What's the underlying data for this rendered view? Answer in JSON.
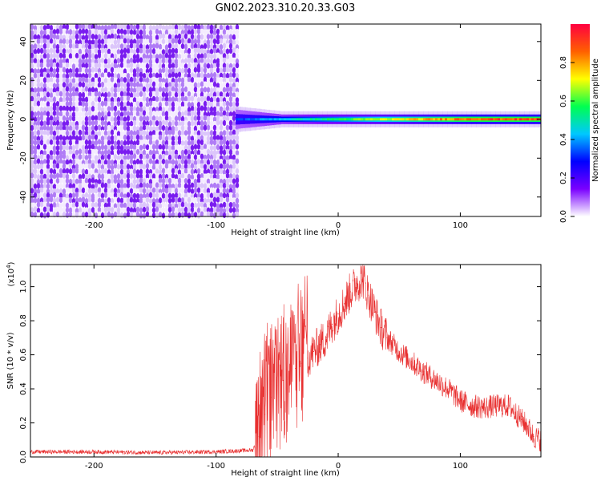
{
  "title": "GN02.2023.310.20.33.G03",
  "colors": {
    "snr_line": "#e83030",
    "signal_purple": "#7a1cf0",
    "background": "#ffffff",
    "axis": "#000000"
  },
  "chart_data": [
    {
      "type": "heatmap",
      "title": "GN02.2023.310.20.33.G03",
      "xlabel": "Height of straight line (km)",
      "ylabel": "Frequency (Hz)",
      "xlim": [
        -252,
        166
      ],
      "ylim": [
        -50,
        49
      ],
      "x_ticks": [
        -200,
        -100,
        0,
        100
      ],
      "y_ticks": [
        -40,
        -20,
        0,
        20,
        40
      ],
      "colorbar": {
        "label": "Normalized spectral amplitude",
        "range": [
          0,
          1
        ],
        "ticks": [
          "0.0",
          "0.2",
          "0.4",
          "0.6",
          "0.8"
        ],
        "colormap": [
          "#ffffff",
          "#7a00ff",
          "#0000ff",
          "#00c8ff",
          "#00ff50",
          "#ffff00",
          "#ff6000",
          "#ff0040"
        ]
      },
      "regions": [
        {
          "description": "noise",
          "x_range": [
            -252,
            -82
          ],
          "y_range": [
            -50,
            49
          ],
          "amplitude": 0.05
        },
        {
          "description": "carrier",
          "x_range": [
            -84,
            166
          ],
          "freq_hz": 0,
          "amplitude_start": 0.35,
          "amplitude_end": 0.95
        }
      ]
    },
    {
      "type": "line",
      "xlabel": "Height of straight line (km)",
      "ylabel": "SNR (10 * v/v)",
      "y_scale_label": "(x10",
      "y_scale_exp": "4",
      "xlim": [
        -252,
        166
      ],
      "ylim": [
        0,
        1.13
      ],
      "x_ticks": [
        -200,
        -100,
        0,
        100
      ],
      "y_ticks": [
        "0.0",
        "0.2",
        "0.4",
        "0.6",
        "0.8",
        "1.0"
      ],
      "series": [
        {
          "x": [
            -252,
            -200,
            -150,
            -100,
            -70,
            -65,
            -60,
            -55,
            -50,
            -45,
            -40,
            -35,
            -30,
            -25,
            -20,
            -15,
            -10,
            -5,
            0,
            5,
            10,
            15,
            20,
            25,
            30,
            35,
            40,
            50,
            60,
            70,
            80,
            90,
            100,
            110,
            120,
            130,
            140,
            150,
            155,
            160,
            166
          ],
          "y": [
            0.03,
            0.03,
            0.025,
            0.03,
            0.04,
            0.12,
            0.25,
            0.35,
            0.42,
            0.45,
            0.5,
            0.52,
            0.55,
            0.58,
            0.62,
            0.66,
            0.7,
            0.78,
            0.84,
            0.9,
            0.97,
            1.02,
            1.05,
            0.95,
            0.85,
            0.76,
            0.7,
            0.62,
            0.56,
            0.5,
            0.45,
            0.4,
            0.33,
            0.3,
            0.29,
            0.3,
            0.3,
            0.22,
            0.18,
            0.12,
            0.1
          ]
        }
      ]
    }
  ]
}
